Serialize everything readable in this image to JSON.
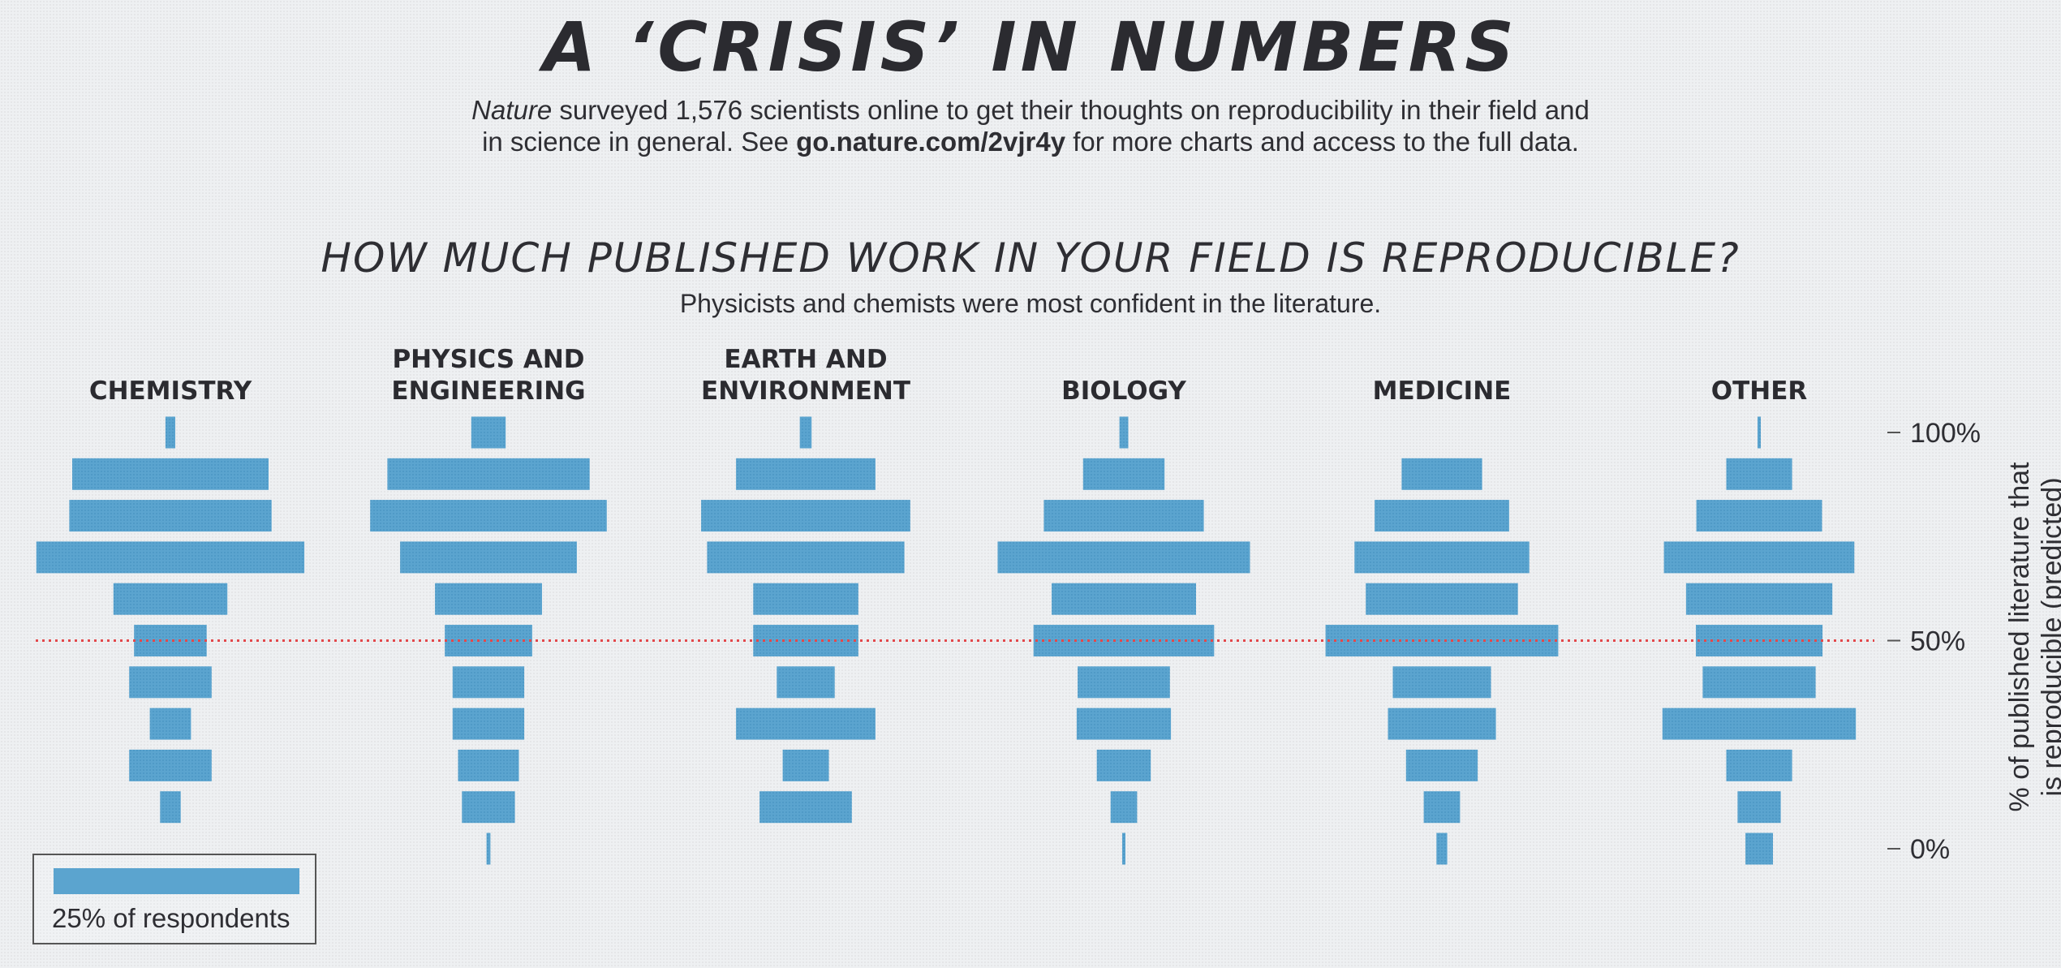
{
  "header": {
    "title": "A ‘CRISIS’ IN NUMBERS",
    "intro_italic": "Nature",
    "intro_line1_rest": " surveyed 1,576 scientists online to get their thoughts on reproducibility in their field and",
    "intro_line2_start": "in science in general. See ",
    "intro_link": "go.nature.com/2vjr4y",
    "intro_line2_end": " for more charts and access to the full data."
  },
  "chart_data": {
    "type": "bar",
    "title": "HOW MUCH PUBLISHED WORK IN YOUR FIELD IS REPRODUCIBLE?",
    "subtitle": "Physicists and chemists were most confident in the literature.",
    "ylabel_line1": "% of published literature that",
    "ylabel_line2": "is reproducible (predicted)",
    "y_levels": [
      100,
      90,
      80,
      70,
      60,
      50,
      40,
      30,
      20,
      10,
      0
    ],
    "y_tick_labels": [
      {
        "value": 100,
        "label": "100%"
      },
      {
        "value": 50,
        "label": "50%"
      },
      {
        "value": 0,
        "label": "0%"
      }
    ],
    "reference_line": 50,
    "legend": {
      "label": "25% of respondents",
      "value": 25
    },
    "series": [
      {
        "name_lines": [
          "CHEMISTRY"
        ],
        "values": [
          1.0,
          20.0,
          20.6,
          27.3,
          11.6,
          7.4,
          8.4,
          4.2,
          8.4,
          2.1,
          0
        ]
      },
      {
        "name_lines": [
          "PHYSICS AND",
          "ENGINEERING"
        ],
        "values": [
          3.5,
          20.6,
          24.1,
          18.0,
          10.9,
          8.9,
          7.3,
          7.3,
          6.2,
          5.4,
          0.4
        ]
      },
      {
        "name_lines": [
          "EARTH AND",
          "ENVIRONMENT"
        ],
        "values": [
          1.2,
          14.2,
          21.3,
          20.1,
          10.7,
          10.7,
          5.9,
          14.2,
          4.7,
          9.4,
          0
        ]
      },
      {
        "name_lines": [
          "BIOLOGY"
        ],
        "values": [
          0.9,
          8.3,
          16.3,
          25.7,
          14.7,
          18.4,
          9.4,
          9.6,
          5.5,
          2.7,
          0.2
        ]
      },
      {
        "name_lines": [
          "MEDICINE"
        ],
        "values": [
          0,
          8.2,
          13.7,
          17.8,
          15.5,
          23.7,
          10.0,
          11.0,
          7.3,
          3.7,
          1.1
        ]
      },
      {
        "name_lines": [
          "OTHER"
        ],
        "values": [
          0.3,
          6.7,
          12.8,
          19.4,
          14.9,
          12.9,
          11.5,
          19.7,
          6.7,
          4.4,
          2.8
        ]
      }
    ]
  }
}
